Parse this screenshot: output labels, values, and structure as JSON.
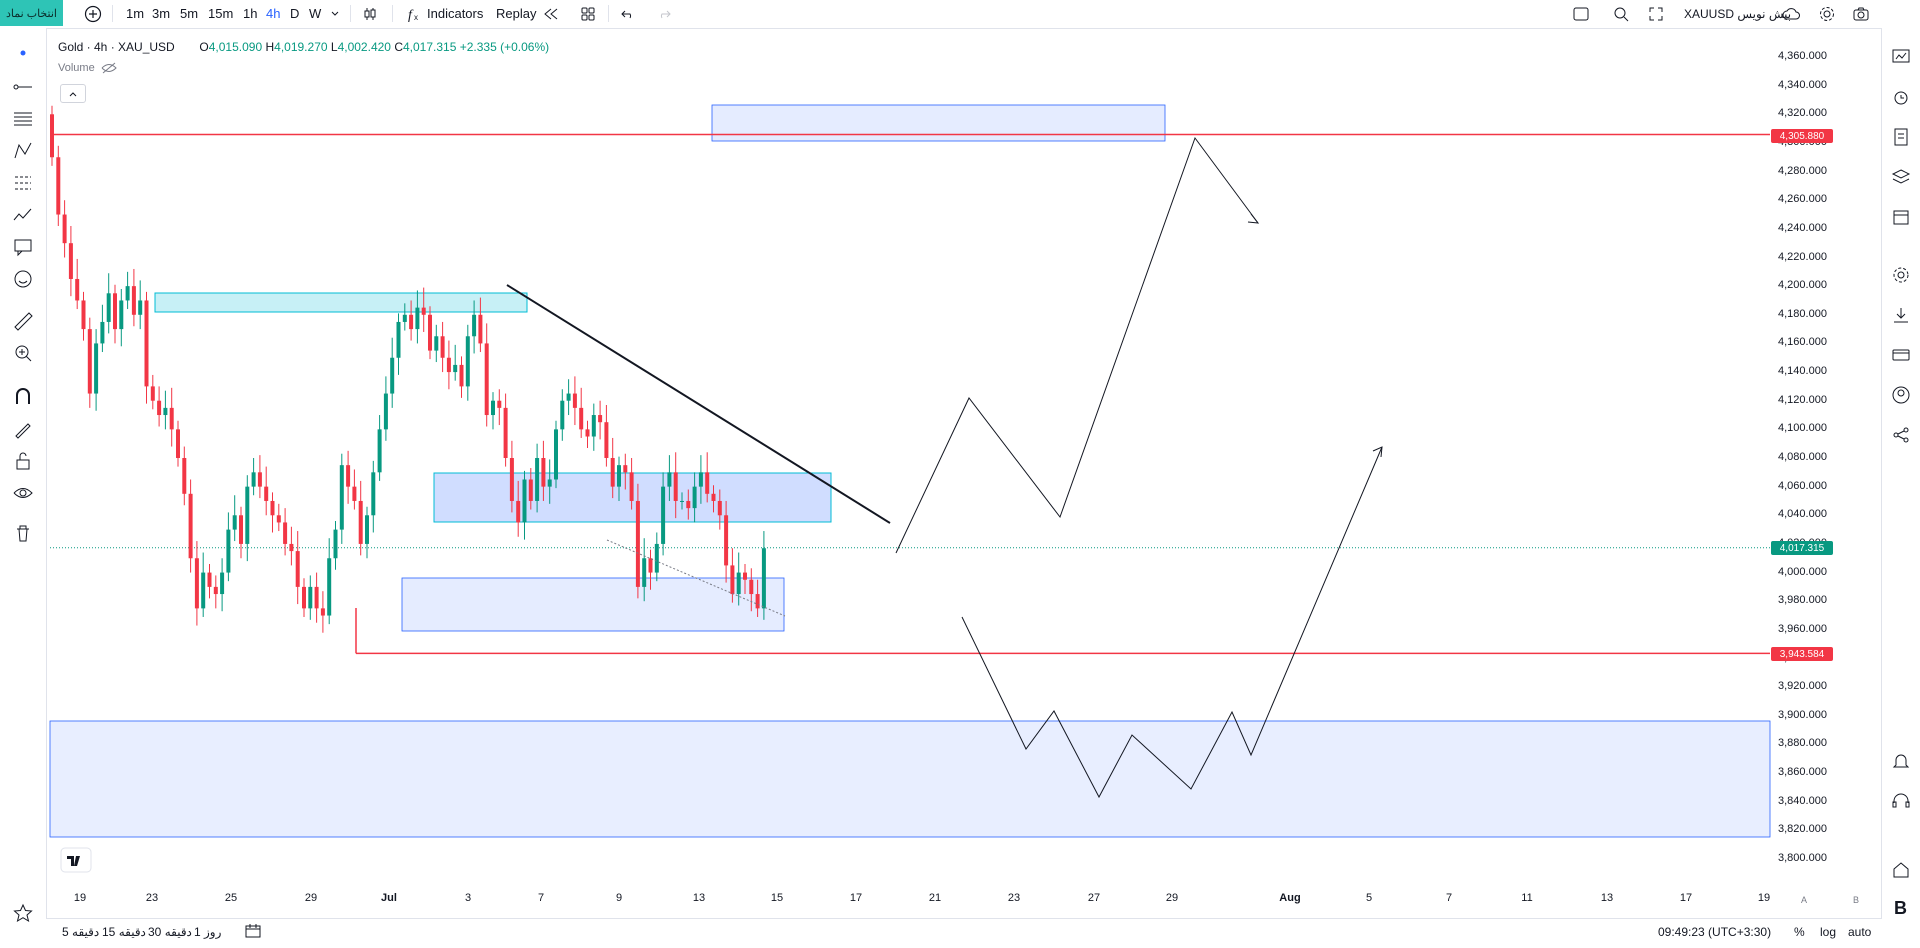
{
  "toolbar": {
    "symbol_search": "انتخاب نماد",
    "timeframes": [
      "1m",
      "3m",
      "5m",
      "15m",
      "1h",
      "4h",
      "D",
      "W"
    ],
    "active_timeframe": "4h",
    "indicators": "Indicators",
    "replay": "Replay",
    "right_symbol": "XAUUSD پیش نویس"
  },
  "legend": {
    "title": "Gold · 4h · XAU_USD",
    "open_label": "O",
    "open": "4,015.090",
    "high_label": "H",
    "high": "4,019.270",
    "low_label": "L",
    "low": "4,002.420",
    "close_label": "C",
    "close": "4,017.315",
    "change": "+2.335 (+0.06%)",
    "volume": "Volume"
  },
  "price_axis": {
    "labels": [
      "4,360.000",
      "4,340.000",
      "4,320.000",
      "4,300.000",
      "4,280.000",
      "4,260.000",
      "4,240.000",
      "4,220.000",
      "4,200.000",
      "4,180.000",
      "4,160.000",
      "4,140.000",
      "4,120.000",
      "4,100.000",
      "4,080.000",
      "4,060.000",
      "4,040.000",
      "4,020.000",
      "4,000.000",
      "3,980.000",
      "3,960.000",
      "3,940.000",
      "3,920.000",
      "3,900.000",
      "3,880.000",
      "3,860.000",
      "3,840.000",
      "3,820.000",
      "3,800.000"
    ],
    "resistance_badge": "4,305.880",
    "current_badge": "4,017.315",
    "support_badge": "3,943.584",
    "badge_red": "#f23645",
    "badge_green": "#089981"
  },
  "time_axis": {
    "labels": [
      "19",
      "23",
      "25",
      "29",
      "Jul",
      "3",
      "7",
      "9",
      "13",
      "15",
      "17",
      "21",
      "23",
      "27",
      "29",
      "Aug",
      "5",
      "7",
      "11",
      "13",
      "17",
      "19"
    ]
  },
  "bottom": {
    "ranges": [
      "5 دقیقه",
      "15 دقیقه",
      "30 دقیقه",
      "1 روز"
    ],
    "time": "09:49:23 (UTC+3:30)",
    "percent": "%",
    "log": "log",
    "auto": "auto"
  },
  "colors": {
    "up": "#089981",
    "down": "#f23645",
    "zone": "#2962ff",
    "zone_cyan": "#00bcd4"
  },
  "chart_data": {
    "type": "candlestick",
    "symbol": "XAU_USD",
    "timeframe": "4h",
    "ylim": [
      3800,
      4360
    ],
    "last": 4017.315,
    "resistance": 4305.88,
    "support": 3943.584
  }
}
